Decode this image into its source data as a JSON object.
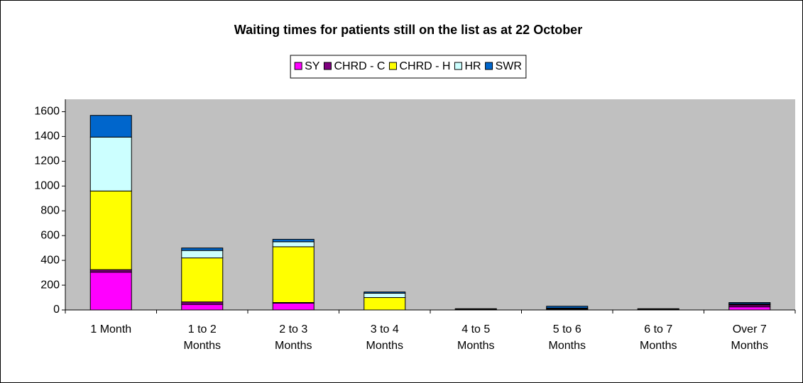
{
  "chart_data": {
    "type": "bar",
    "stacked": true,
    "title": "Waiting times for patients still on the list as at 22 October",
    "categories": [
      "1 Month",
      "1 to 2 Months",
      "2 to 3 Months",
      "3 to 4 Months",
      "4 to 5 Months",
      "5 to 6 Months",
      "6 to 7 Months",
      "Over 7 Months"
    ],
    "series": [
      {
        "name": "SY",
        "color": "#ff00ff",
        "values": [
          305,
          45,
          55,
          0,
          0,
          5,
          0,
          25
        ]
      },
      {
        "name": "CHRD - C",
        "color": "#800080",
        "values": [
          20,
          20,
          5,
          0,
          5,
          5,
          5,
          15
        ]
      },
      {
        "name": "CHRD - H",
        "color": "#ffff00",
        "values": [
          635,
          355,
          450,
          100,
          0,
          0,
          0,
          5
        ]
      },
      {
        "name": "HR",
        "color": "#ccffff",
        "values": [
          435,
          60,
          40,
          35,
          0,
          5,
          0,
          5
        ]
      },
      {
        "name": "SWR",
        "color": "#0066cc",
        "values": [
          175,
          20,
          20,
          10,
          5,
          15,
          5,
          10
        ]
      }
    ],
    "ylim": [
      0,
      1700
    ],
    "yticks": [
      0,
      200,
      400,
      600,
      800,
      1000,
      1200,
      1400,
      1600
    ],
    "legend": "top",
    "plot_background": "#c0c0c0"
  }
}
